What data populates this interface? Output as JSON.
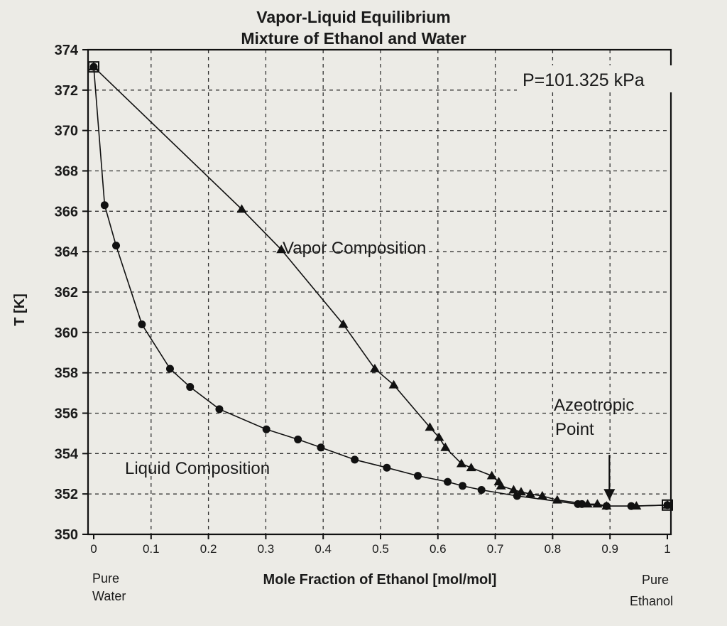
{
  "chart_data": {
    "type": "line",
    "title": "Vapor-Liquid Equilibrium",
    "subtitle": "Mixture of Ethanol and Water",
    "xlabel": "Mole Fraction of Ethanol [mol/mol]",
    "ylabel": "T [K]",
    "xlim": [
      0,
      1
    ],
    "ylim": [
      350,
      374
    ],
    "xticks": [
      0,
      0.1,
      0.2,
      0.3,
      0.4,
      0.5,
      0.6,
      0.7,
      0.8,
      0.9,
      1
    ],
    "yticks": [
      350,
      352,
      354,
      356,
      358,
      360,
      362,
      364,
      366,
      368,
      370,
      372,
      374
    ],
    "grid": true,
    "x_end_labels": {
      "left": [
        "Pure",
        "Water"
      ],
      "right": [
        "Pure",
        "Ethanol"
      ]
    },
    "pressure_label": "P=101.325 kPa",
    "annotations": {
      "vapor": "Vapor Composition",
      "liquid": "Liquid Composition",
      "azeotrope": [
        "Azeotropic",
        "Point"
      ]
    },
    "azeotrope": {
      "x": 0.894,
      "y": 351.4
    },
    "endpoints": [
      {
        "x": 0.0,
        "y": 373.15
      },
      {
        "x": 1.0,
        "y": 351.45
      }
    ],
    "series": [
      {
        "name": "Liquid Composition",
        "marker": "circle",
        "x": [
          0.0,
          0.019,
          0.039,
          0.084,
          0.133,
          0.168,
          0.219,
          0.301,
          0.356,
          0.396,
          0.455,
          0.511,
          0.565,
          0.617,
          0.643,
          0.676,
          0.738,
          0.844,
          0.851,
          0.894,
          0.937,
          1.0
        ],
        "y": [
          373.15,
          366.3,
          364.3,
          360.4,
          358.2,
          357.3,
          356.2,
          355.2,
          354.7,
          354.3,
          353.7,
          353.3,
          352.9,
          352.6,
          352.4,
          352.2,
          351.9,
          351.5,
          351.5,
          351.4,
          351.4,
          351.45
        ]
      },
      {
        "name": "Vapor Composition",
        "marker": "triangle",
        "x": [
          0.0,
          0.258,
          0.327,
          0.435,
          0.49,
          0.523,
          0.586,
          0.602,
          0.613,
          0.641,
          0.658,
          0.694,
          0.706,
          0.71,
          0.732,
          0.745,
          0.761,
          0.782,
          0.808,
          0.861,
          0.878,
          0.894,
          0.946,
          1.0
        ],
        "y": [
          373.15,
          366.1,
          364.1,
          360.4,
          358.2,
          357.4,
          355.3,
          354.8,
          354.3,
          353.5,
          353.3,
          352.9,
          352.6,
          352.4,
          352.2,
          352.1,
          352.0,
          351.9,
          351.7,
          351.5,
          351.5,
          351.4,
          351.4,
          351.45
        ]
      }
    ]
  }
}
